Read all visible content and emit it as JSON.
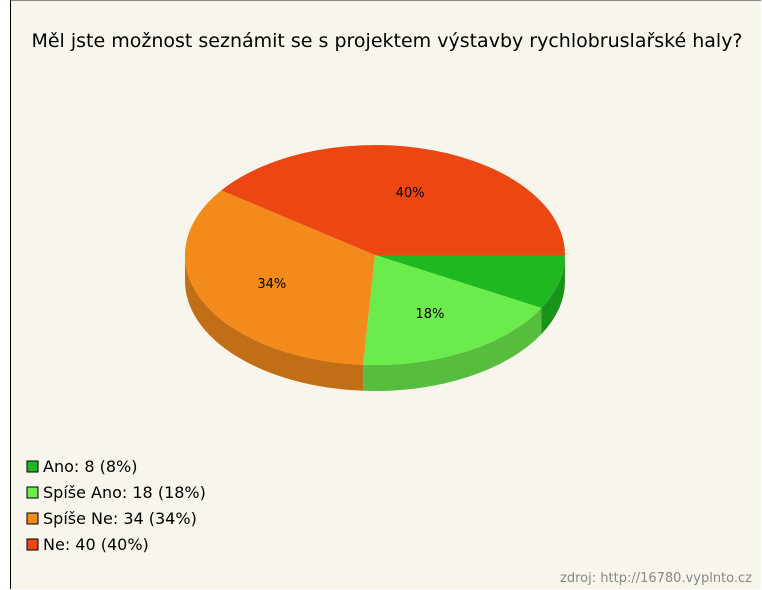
{
  "chart_data": {
    "type": "pie3d",
    "title": "Měl jste možnost seznámit se s projektem výstavby rychlobruslařské haly?",
    "categories": [
      "Ano",
      "Spíše Ano",
      "Spíše Ne",
      "Ne"
    ],
    "values": [
      8,
      18,
      34,
      40
    ],
    "value_labels": [
      null,
      "18%",
      "34%",
      "40%"
    ],
    "colors": [
      "#20b820",
      "#6cec4c",
      "#f28a1c",
      "#ec4612"
    ],
    "legend_labels": [
      "Ano: 8 (8%)",
      "Spíše Ano: 18 (18%)",
      "Spíše Ne: 34 (34%)",
      "Ne: 40 (40%)"
    ],
    "source": "zdroj: http://16780.vyplnto.cz"
  }
}
